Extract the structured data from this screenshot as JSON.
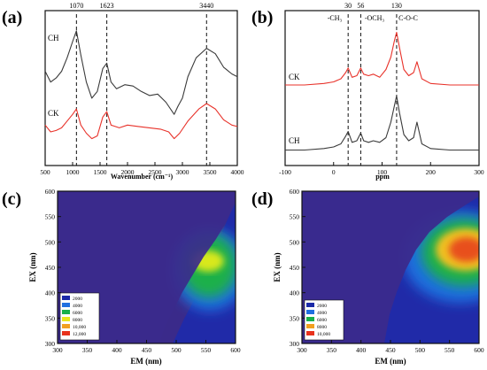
{
  "panel_labels": [
    "(a)",
    "(b)",
    "(c)",
    "(d)"
  ],
  "colors": {
    "ch": "#3a3a3a",
    "ck": "#e8322a",
    "ink": "#111111"
  },
  "chart_data": [
    {
      "id": "a",
      "type": "line",
      "xlabel": "Wavenumber (cm⁻¹)",
      "xlim": [
        500,
        4000
      ],
      "xticks": [
        500,
        1000,
        1500,
        2000,
        2500,
        3000,
        3500,
        4000
      ],
      "markers": [
        {
          "x": 1070,
          "label": "1070"
        },
        {
          "x": 1623,
          "label": "1623"
        },
        {
          "x": 3440,
          "label": "3440"
        }
      ],
      "series": [
        {
          "name": "CH",
          "color": "#3a3a3a",
          "x": [
            500,
            600,
            700,
            800,
            900,
            1000,
            1070,
            1150,
            1250,
            1350,
            1450,
            1550,
            1623,
            1700,
            1800,
            1950,
            2100,
            2250,
            2400,
            2550,
            2700,
            2850,
            2920,
            3000,
            3100,
            3250,
            3440,
            3600,
            3750,
            3900,
            4000
          ],
          "y": [
            0.7,
            0.62,
            0.65,
            0.7,
            0.8,
            0.92,
            1.0,
            0.82,
            0.62,
            0.5,
            0.55,
            0.72,
            0.76,
            0.62,
            0.57,
            0.6,
            0.59,
            0.55,
            0.52,
            0.53,
            0.47,
            0.38,
            0.44,
            0.5,
            0.66,
            0.8,
            0.87,
            0.83,
            0.73,
            0.68,
            0.66
          ]
        },
        {
          "name": "CK",
          "color": "#e8322a",
          "x": [
            500,
            600,
            700,
            800,
            900,
            1000,
            1070,
            1150,
            1250,
            1350,
            1450,
            1550,
            1623,
            1700,
            1850,
            2000,
            2200,
            2400,
            2600,
            2750,
            2850,
            2950,
            3100,
            3300,
            3440,
            3600,
            3750,
            3900,
            4000
          ],
          "y": [
            0.3,
            0.25,
            0.26,
            0.28,
            0.33,
            0.38,
            0.42,
            0.3,
            0.24,
            0.2,
            0.22,
            0.36,
            0.4,
            0.3,
            0.28,
            0.3,
            0.29,
            0.28,
            0.27,
            0.25,
            0.2,
            0.24,
            0.33,
            0.42,
            0.46,
            0.42,
            0.34,
            0.3,
            0.29
          ]
        }
      ]
    },
    {
      "id": "b",
      "type": "line",
      "xlabel": "ppm",
      "xlim": [
        -100,
        300
      ],
      "xticks": [
        -100,
        0,
        100,
        200,
        300
      ],
      "markers": [
        {
          "x": 30,
          "label": "30"
        },
        {
          "x": 56,
          "label": "56"
        },
        {
          "x": 130,
          "label": "130"
        }
      ],
      "annotations": [
        "-CH₃",
        "-OCH₃",
        "C-O-C"
      ],
      "series": [
        {
          "name": "CK",
          "color": "#e8322a",
          "x": [
            -100,
            -60,
            -20,
            0,
            15,
            25,
            30,
            38,
            48,
            56,
            62,
            72,
            82,
            95,
            108,
            118,
            125,
            130,
            136,
            145,
            155,
            165,
            172,
            182,
            200,
            240,
            300
          ],
          "y": [
            0.52,
            0.52,
            0.53,
            0.54,
            0.56,
            0.6,
            0.63,
            0.57,
            0.58,
            0.63,
            0.59,
            0.58,
            0.59,
            0.57,
            0.62,
            0.7,
            0.8,
            0.86,
            0.76,
            0.62,
            0.58,
            0.6,
            0.67,
            0.56,
            0.53,
            0.52,
            0.52
          ]
        },
        {
          "name": "CH",
          "color": "#3a3a3a",
          "x": [
            -100,
            -60,
            -20,
            0,
            15,
            25,
            30,
            38,
            48,
            56,
            62,
            72,
            82,
            95,
            108,
            118,
            125,
            130,
            136,
            145,
            155,
            165,
            172,
            182,
            200,
            240,
            300
          ],
          "y": [
            0.1,
            0.1,
            0.11,
            0.12,
            0.14,
            0.19,
            0.22,
            0.15,
            0.16,
            0.21,
            0.16,
            0.15,
            0.16,
            0.15,
            0.18,
            0.28,
            0.38,
            0.45,
            0.34,
            0.2,
            0.16,
            0.18,
            0.28,
            0.14,
            0.11,
            0.1,
            0.1
          ]
        }
      ]
    },
    {
      "id": "c",
      "type": "heatmap",
      "xlabel": "EM (nm)",
      "ylabel": "EX (nm)",
      "xlim": [
        300,
        600
      ],
      "ylim": [
        300,
        600
      ],
      "xticks": [
        300,
        350,
        400,
        450,
        500,
        550,
        600
      ],
      "yticks": [
        300,
        350,
        400,
        450,
        500,
        550,
        600
      ],
      "legend": [
        {
          "label": "2000",
          "color": "#1b2aa8"
        },
        {
          "label": "4000",
          "color": "#1f6fe0"
        },
        {
          "label": "6000",
          "color": "#17b04a"
        },
        {
          "label": "8000",
          "color": "#e8e61c"
        },
        {
          "label": "10,000",
          "color": "#f2a020"
        },
        {
          "label": "12,000",
          "color": "#e8321c"
        }
      ],
      "legend_position": "bottom-left",
      "peak": {
        "em": 545,
        "ex": 460,
        "level": 0.66
      }
    },
    {
      "id": "d",
      "type": "heatmap",
      "xlabel": "EM (nm)",
      "ylabel": "EX (nm)",
      "xlim": [
        300,
        600
      ],
      "ylim": [
        300,
        600
      ],
      "xticks": [
        300,
        350,
        400,
        450,
        500,
        550,
        600
      ],
      "yticks": [
        300,
        350,
        400,
        450,
        500,
        550,
        600
      ],
      "legend": [
        {
          "label": "2000",
          "color": "#1b2aa8"
        },
        {
          "label": "4000",
          "color": "#1f6fe0"
        },
        {
          "label": "6000",
          "color": "#17b04a"
        },
        {
          "label": "8000",
          "color": "#f2a020"
        },
        {
          "label": "10,000",
          "color": "#e8321c"
        }
      ],
      "legend_position": "bottom-left",
      "peak": {
        "em": 565,
        "ex": 485,
        "level": 0.98
      }
    }
  ]
}
